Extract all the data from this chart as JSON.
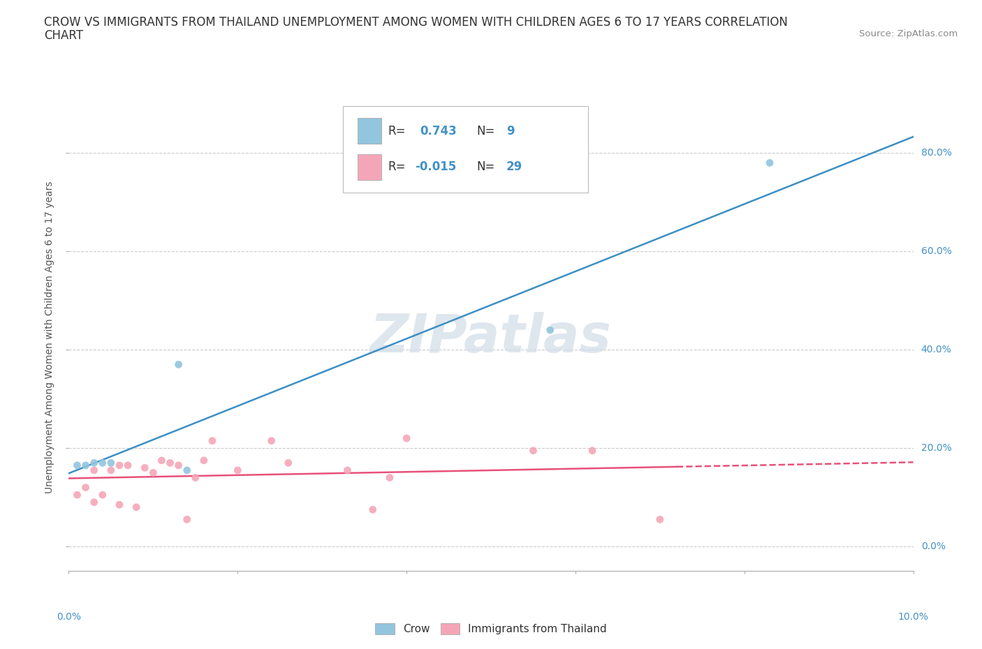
{
  "title_line1": "CROW VS IMMIGRANTS FROM THAILAND UNEMPLOYMENT AMONG WOMEN WITH CHILDREN AGES 6 TO 17 YEARS CORRELATION",
  "title_line2": "CHART",
  "source": "Source: ZipAtlas.com",
  "ylabel": "Unemployment Among Women with Children Ages 6 to 17 years",
  "xlim": [
    0.0,
    0.1
  ],
  "ylim": [
    -0.05,
    0.9
  ],
  "xtick_vals": [
    0.0,
    0.02,
    0.04,
    0.06,
    0.08,
    0.1
  ],
  "ytick_vals": [
    0.0,
    0.2,
    0.4,
    0.6,
    0.8
  ],
  "crow_color": "#92c5de",
  "thailand_color": "#f4a6b8",
  "crow_line_color": "#3b8fc4",
  "thailand_line_color": "#e8507a",
  "background_color": "#ffffff",
  "watermark": "ZIPatlas",
  "legend_R_crow": "0.743",
  "legend_N_crow": "9",
  "legend_R_thai": "-0.015",
  "legend_N_thai": "29",
  "crow_x": [
    0.001,
    0.002,
    0.003,
    0.004,
    0.005,
    0.013,
    0.014,
    0.057,
    0.083
  ],
  "crow_y": [
    0.165,
    0.165,
    0.17,
    0.17,
    0.17,
    0.37,
    0.155,
    0.44,
    0.78
  ],
  "thailand_x": [
    0.001,
    0.002,
    0.003,
    0.003,
    0.004,
    0.005,
    0.006,
    0.006,
    0.007,
    0.008,
    0.009,
    0.01,
    0.011,
    0.012,
    0.013,
    0.014,
    0.015,
    0.016,
    0.017,
    0.02,
    0.024,
    0.026,
    0.033,
    0.036,
    0.038,
    0.04,
    0.055,
    0.062,
    0.07
  ],
  "thailand_y": [
    0.105,
    0.12,
    0.09,
    0.155,
    0.105,
    0.155,
    0.165,
    0.085,
    0.165,
    0.08,
    0.16,
    0.15,
    0.175,
    0.17,
    0.165,
    0.055,
    0.14,
    0.175,
    0.215,
    0.155,
    0.215,
    0.17,
    0.155,
    0.075,
    0.14,
    0.22,
    0.195,
    0.195,
    0.055
  ]
}
